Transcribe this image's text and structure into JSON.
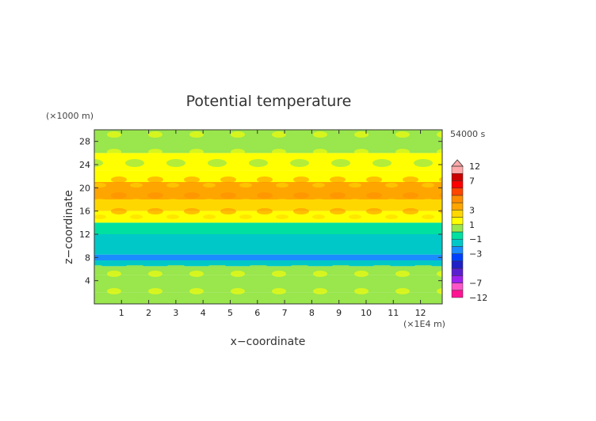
{
  "chart_data": {
    "type": "heatmap",
    "title": "Potential temperature",
    "xlabel": "x−coordinate",
    "ylabel": "z−coordinate",
    "x_unit": "(×1E4 m)",
    "y_unit": "(×1000 m)",
    "time_label": "54000 s",
    "xlim": [
      0,
      12.8
    ],
    "ylim": [
      0,
      30
    ],
    "x_ticks": [
      "1",
      "2",
      "3",
      "4",
      "5",
      "6",
      "7",
      "8",
      "9",
      "10",
      "11",
      "12"
    ],
    "y_ticks": [
      "4",
      "8",
      "12",
      "16",
      "20",
      "24",
      "28"
    ],
    "colorbar": {
      "labels": [
        "12",
        "7",
        "3",
        "1",
        "−1",
        "−3",
        "−7",
        "−12"
      ],
      "levels": [
        -12,
        -9,
        -7,
        -6,
        -5,
        -4,
        -3,
        -2,
        -1,
        0,
        1,
        2,
        3,
        4,
        5,
        6,
        7,
        9,
        12
      ],
      "colors": [
        "#ff1493",
        "#ff55c8",
        "#a020f0",
        "#5a20d0",
        "#2020c8",
        "#0040ff",
        "#1a8cff",
        "#00c8c8",
        "#00e0a0",
        "#99e64d",
        "#ffff00",
        "#ffd700",
        "#ffa500",
        "#ff8c00",
        "#ff4500",
        "#ff0000",
        "#cc0000",
        "#ffaaaa"
      ]
    },
    "bands": [
      {
        "z_from": 0,
        "z_to": 2,
        "level": 0
      },
      {
        "z_from": 2,
        "z_to": 5,
        "level": 0
      },
      {
        "z_from": 5,
        "z_to": 6.5,
        "level": 0
      },
      {
        "z_from": 6.5,
        "z_to": 7.5,
        "level": -2
      },
      {
        "z_from": 7.5,
        "z_to": 8.5,
        "level": -3
      },
      {
        "z_from": 8.5,
        "z_to": 12,
        "level": -2
      },
      {
        "z_from": 12,
        "z_to": 14,
        "level": -1
      },
      {
        "z_from": 14,
        "z_to": 16,
        "level": 1
      },
      {
        "z_from": 16,
        "z_to": 18,
        "level": 2
      },
      {
        "z_from": 18,
        "z_to": 21,
        "level": 3
      },
      {
        "z_from": 21,
        "z_to": 23,
        "level": 1
      },
      {
        "z_from": 23,
        "z_to": 26,
        "level": 1
      },
      {
        "z_from": 26,
        "z_to": 30,
        "level": 0
      }
    ]
  }
}
